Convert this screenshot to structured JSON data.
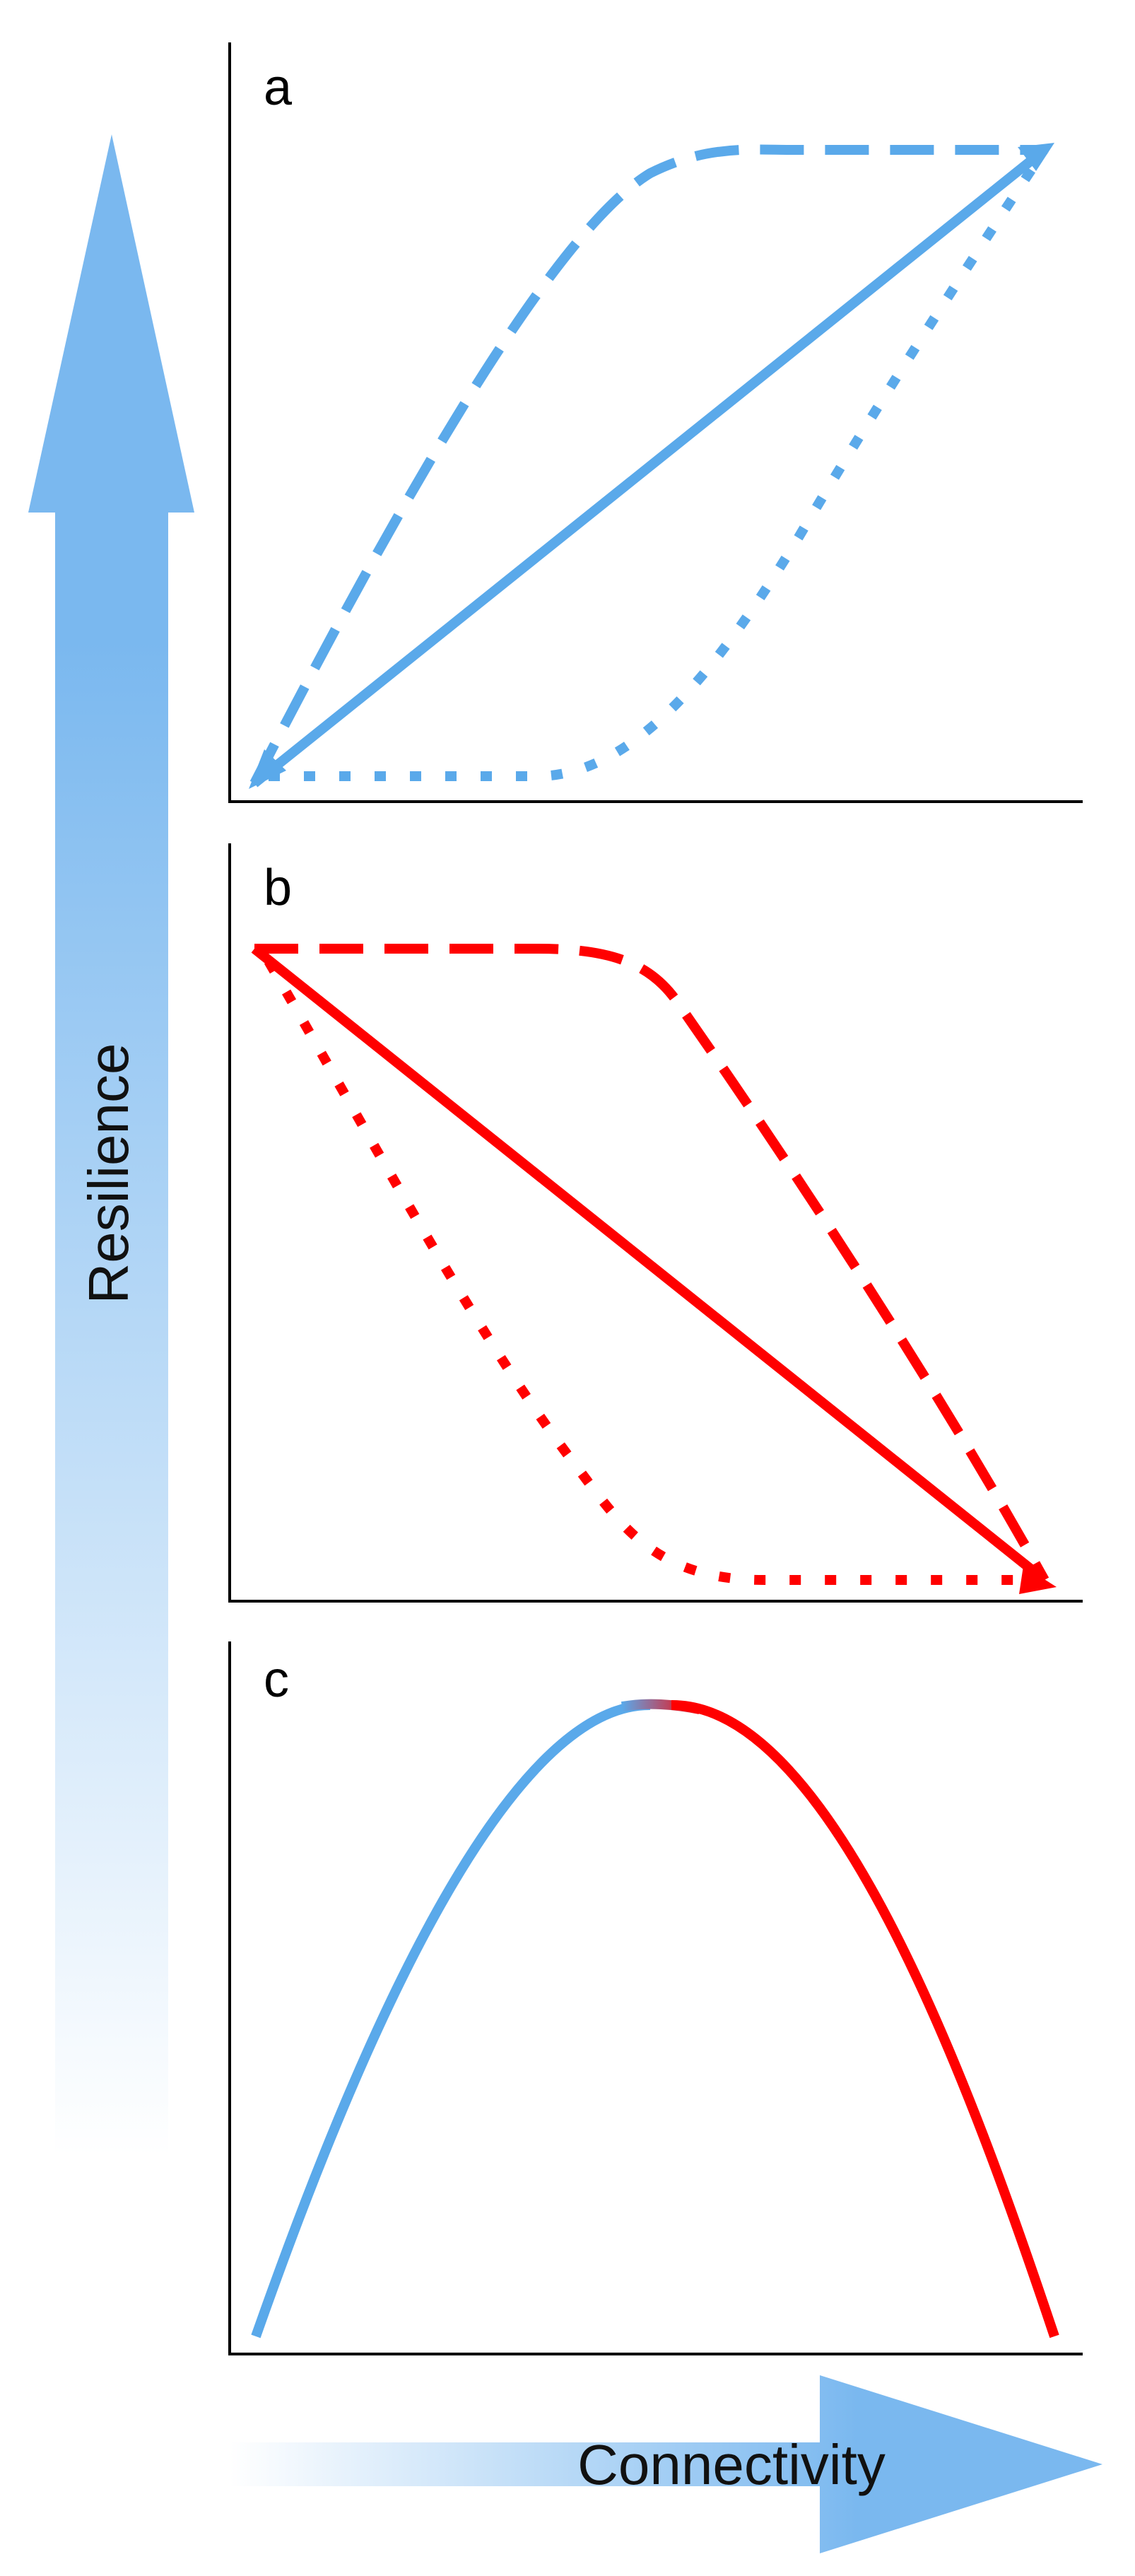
{
  "colors": {
    "blue": "#5aa9ea",
    "red": "#ff0000",
    "arrow_fill": "#7ab8ef"
  },
  "y_arrow": {
    "label": "Resilience"
  },
  "x_arrow": {
    "label": "Connectivity"
  },
  "panels": [
    {
      "letter": "a",
      "trend": "increasing",
      "color": "#5aa9ea",
      "curves": [
        {
          "style": "dashed",
          "shape": "concave saturating rise"
        },
        {
          "style": "solid",
          "shape": "linear rise"
        },
        {
          "style": "dotted",
          "shape": "convex delayed rise"
        }
      ]
    },
    {
      "letter": "b",
      "trend": "decreasing",
      "color": "#ff0000",
      "curves": [
        {
          "style": "dashed",
          "shape": "delayed decline"
        },
        {
          "style": "solid",
          "shape": "linear decline"
        },
        {
          "style": "dotted",
          "shape": "early decline"
        }
      ]
    },
    {
      "letter": "c",
      "trend": "hump-shaped",
      "curves": [
        {
          "style": "solid",
          "shape": "rising limb",
          "color": "#5aa9ea"
        },
        {
          "style": "solid",
          "shape": "falling limb",
          "color": "#ff0000"
        }
      ]
    }
  ]
}
